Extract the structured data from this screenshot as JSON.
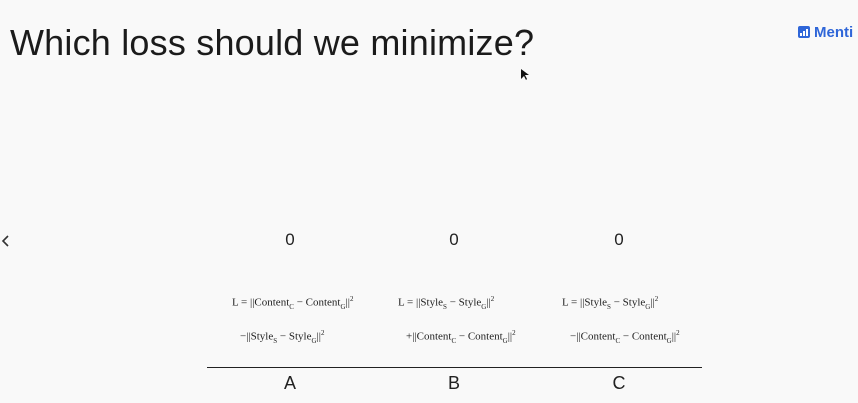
{
  "slide": {
    "question": "Which loss should we minimize?",
    "brand": "Menti"
  },
  "nav": {
    "prev_icon": "chevron-left-icon"
  },
  "options": [
    {
      "label": "A",
      "count": "0",
      "formula_line1": "L = ||Content",
      "formula_line1_sub": "C",
      "formula_line1_b": " − Content",
      "formula_line1_sub2": "G",
      "formula_line2": "−||Style",
      "formula_line2_sub": "S",
      "formula_line2_b": " − Style",
      "formula_line2_sub2": "G"
    },
    {
      "label": "B",
      "count": "0",
      "formula_line1": "L = ||Style",
      "formula_line1_sub": "S",
      "formula_line1_b": " − Style",
      "formula_line1_sub2": "G",
      "formula_line2": "+||Content",
      "formula_line2_sub": "C",
      "formula_line2_b": " − Content",
      "formula_line2_sub2": "G"
    },
    {
      "label": "C",
      "count": "0",
      "formula_line1": "L = ||Style",
      "formula_line1_sub": "S",
      "formula_line1_b": " − Style",
      "formula_line1_sub2": "G",
      "formula_line2": "−||Content",
      "formula_line2_sub": "C",
      "formula_line2_b": " − Content",
      "formula_line2_sub2": "G"
    }
  ],
  "norm_sup": "2",
  "norm_sub": "2"
}
